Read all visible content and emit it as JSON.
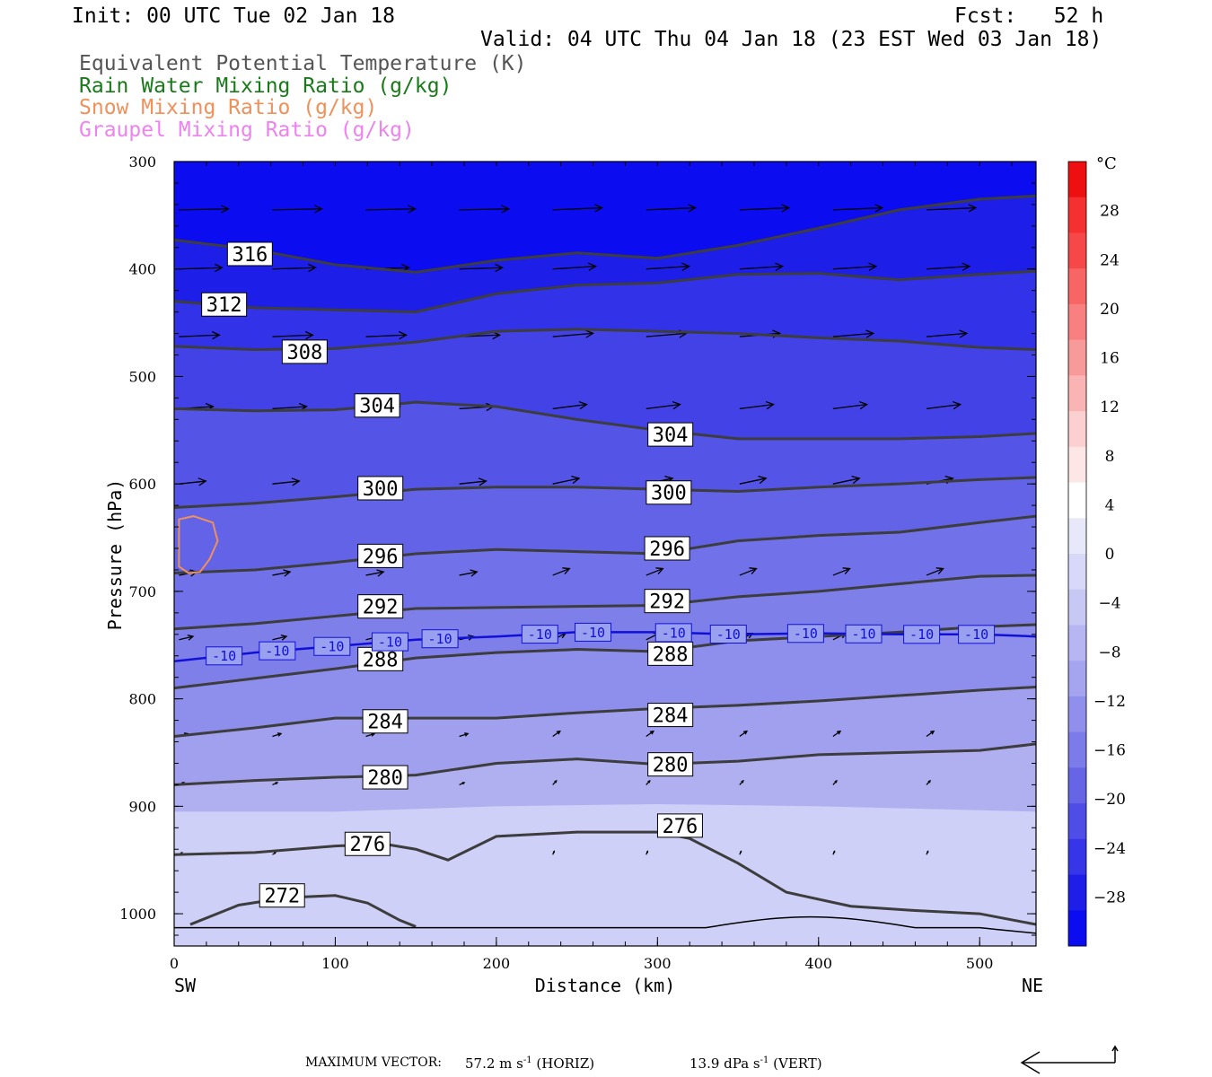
{
  "header": {
    "init": "Init: 00 UTC Tue 02 Jan 18",
    "fcst": "Fcst:   52 h",
    "valid": "Valid: 04 UTC Thu 04 Jan 18 (23 EST Wed 03 Jan 18)",
    "fields": [
      {
        "label": "Equivalent Potential Temperature (K)",
        "color": "#555555"
      },
      {
        "label": "Rain Water Mixing Ratio (g/kg)",
        "color": "#1a7a1a"
      },
      {
        "label": "Snow Mixing Ratio (g/kg)",
        "color": "#f0905a"
      },
      {
        "label": "Graupel Mixing Ratio (g/kg)",
        "color": "#ee82ee"
      }
    ]
  },
  "chart_data": {
    "type": "cross-section",
    "xlabel": "Distance (km)",
    "ylabel": "Pressure (hPa)",
    "xlim": [
      0,
      535
    ],
    "ylim": [
      1030,
      300
    ],
    "x_ticks": [
      0,
      100,
      200,
      300,
      400,
      500
    ],
    "y_ticks": [
      300,
      400,
      500,
      600,
      700,
      800,
      900,
      1000
    ],
    "left_end_label": "SW",
    "right_end_label": "NE",
    "colorbar": {
      "unit": "°C",
      "tick_labels": [
        28,
        24,
        20,
        16,
        12,
        8,
        4,
        0,
        -4,
        -8,
        -12,
        -16,
        -20,
        -24,
        -28
      ],
      "colors_top_to_bottom": [
        "#ee1010",
        "#f53030",
        "#f64848",
        "#f76565",
        "#f88080",
        "#f99a9a",
        "#fbb4b4",
        "#fcd0d0",
        "#fde6e6",
        "#ffffff",
        "#e8e8fb",
        "#d8d8f8",
        "#c8c8f5",
        "#b6b6f2",
        "#a4a4ef",
        "#9090ec",
        "#7b7be9",
        "#6565e6",
        "#4e4ee6",
        "#3636e8",
        "#1e1ee9",
        "#0c0cf0"
      ]
    },
    "theta_e_contours": [
      {
        "level": 316,
        "x": [
          0,
          50,
          100,
          150,
          200,
          250,
          300,
          350,
          400,
          450,
          500,
          535
        ],
        "p": [
          373,
          382,
          396,
          403,
          392,
          385,
          390,
          378,
          362,
          345,
          335,
          332
        ],
        "label_x": 47,
        "label_p": 386
      },
      {
        "level": 312,
        "x": [
          0,
          50,
          100,
          150,
          200,
          250,
          300,
          350,
          400,
          450,
          500,
          535
        ],
        "p": [
          430,
          436,
          438,
          440,
          423,
          415,
          413,
          405,
          404,
          410,
          405,
          402
        ],
        "label_x": 31,
        "label_p": 433
      },
      {
        "level": 308,
        "x": [
          0,
          50,
          100,
          150,
          200,
          250,
          300,
          350,
          400,
          450,
          500,
          535
        ],
        "p": [
          472,
          475,
          474,
          468,
          458,
          456,
          458,
          460,
          464,
          467,
          473,
          475
        ],
        "label_x": 81,
        "label_p": 477
      },
      {
        "level": 304,
        "x": [
          0,
          50,
          100,
          150,
          200,
          250,
          300,
          350,
          400,
          450,
          500,
          535
        ],
        "p": [
          530,
          532,
          531,
          524,
          528,
          540,
          550,
          558,
          558,
          558,
          556,
          553
        ],
        "label_x": 126,
        "label_p": 527,
        "label2_x": 308,
        "label2_p": 554
      },
      {
        "level": 300,
        "x": [
          0,
          50,
          100,
          150,
          200,
          250,
          300,
          350,
          400,
          450,
          500,
          535
        ],
        "p": [
          622,
          618,
          612,
          605,
          603,
          603,
          605,
          607,
          603,
          600,
          596,
          594
        ],
        "label_x": 128,
        "label_p": 604,
        "label2_x": 307,
        "label2_p": 608
      },
      {
        "level": 296,
        "x": [
          0,
          50,
          100,
          150,
          200,
          250,
          300,
          350,
          400,
          450,
          500,
          535
        ],
        "p": [
          683,
          680,
          673,
          665,
          661,
          663,
          665,
          653,
          648,
          645,
          636,
          630
        ],
        "label_x": 128,
        "label_p": 667,
        "label2_x": 306,
        "label2_p": 660
      },
      {
        "level": 292,
        "x": [
          0,
          50,
          100,
          150,
          200,
          250,
          300,
          350,
          400,
          450,
          500,
          535
        ],
        "p": [
          735,
          730,
          723,
          716,
          715,
          714,
          713,
          705,
          700,
          693,
          686,
          685
        ],
        "label_x": 128,
        "label_p": 714,
        "label2_x": 306,
        "label2_p": 709
      },
      {
        "level": 288,
        "x": [
          0,
          50,
          100,
          150,
          200,
          250,
          300,
          350,
          400,
          450,
          500,
          535
        ],
        "p": [
          790,
          781,
          772,
          762,
          757,
          754,
          756,
          746,
          742,
          738,
          733,
          731
        ],
        "label_x": 128,
        "label_p": 763,
        "label2_x": 308,
        "label2_p": 758
      },
      {
        "level": 284,
        "x": [
          0,
          50,
          100,
          150,
          200,
          250,
          300,
          350,
          400,
          450,
          500,
          535
        ],
        "p": [
          835,
          827,
          818,
          818,
          818,
          813,
          809,
          806,
          802,
          797,
          792,
          789
        ],
        "label_x": 131,
        "label_p": 821,
        "label2_x": 308,
        "label2_p": 815
      },
      {
        "level": 280,
        "x": [
          0,
          50,
          100,
          150,
          200,
          250,
          300,
          350,
          400,
          450,
          500,
          535
        ],
        "p": [
          880,
          876,
          873,
          871,
          860,
          856,
          861,
          858,
          852,
          850,
          848,
          842
        ],
        "label_x": 131,
        "label_p": 873,
        "label2_x": 308,
        "label2_p": 861
      },
      {
        "level": 276,
        "x": [
          0,
          50,
          100,
          130,
          150,
          170,
          200,
          250,
          300,
          320,
          350,
          380,
          420,
          460,
          500,
          535
        ],
        "p": [
          945,
          943,
          937,
          935,
          940,
          950,
          928,
          924,
          924,
          930,
          953,
          980,
          993,
          997,
          1000,
          1010
        ],
        "label_x": 120,
        "label_p": 935,
        "label2_x": 314,
        "label2_p": 918
      },
      {
        "level": 272,
        "x": [
          10,
          40,
          70,
          100,
          120,
          140,
          150
        ],
        "p": [
          1010,
          992,
          985,
          983,
          990,
          1006,
          1012
        ],
        "label_x": 67,
        "label_p": 983
      }
    ],
    "minus10_isotherm": {
      "level": -10,
      "color": "#1010d8",
      "x": [
        0,
        50,
        100,
        150,
        200,
        250,
        300,
        350,
        400,
        450,
        500,
        535
      ],
      "p": [
        765,
        757,
        751,
        745,
        742,
        738,
        738,
        740,
        739,
        740,
        740,
        742
      ],
      "label_x": [
        31,
        64,
        98,
        134,
        165,
        227,
        260,
        310,
        344,
        392,
        428,
        464,
        498
      ]
    },
    "snow_contour": {
      "x": [
        3,
        12,
        24,
        27,
        22,
        16,
        9,
        3
      ],
      "p": [
        633,
        630,
        636,
        653,
        670,
        682,
        683,
        677
      ]
    }
  },
  "footer": {
    "max_vector_label": "MAXIMUM VECTOR:",
    "horiz_value": "57.2 m s",
    "horiz_unit": "(HORIZ)",
    "vert_value": "13.9 dPa s",
    "vert_unit": "(VERT)",
    "exp": "-1"
  }
}
